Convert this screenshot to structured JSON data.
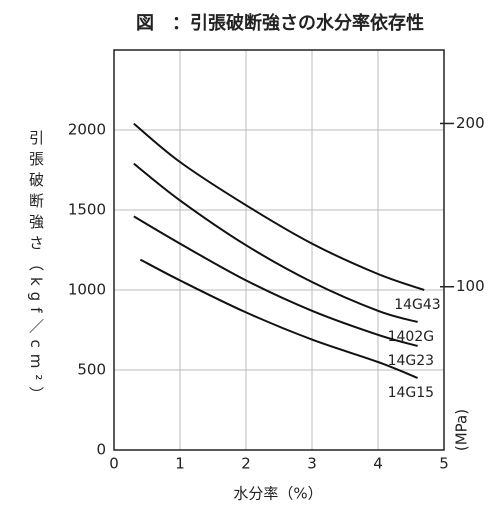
{
  "chart_data": {
    "type": "line",
    "title": "図　：引張破断強さの水分率依存性",
    "x_label": "水分率（%）",
    "y_label": "引張破断強さ（kgf／cm²）",
    "y2_label": "(MPa)",
    "xlim": [
      0,
      5
    ],
    "xticks": [
      0,
      1,
      2,
      3,
      4,
      5
    ],
    "ylim": [
      0,
      2500
    ],
    "yticks": [
      0,
      500,
      1000,
      1500,
      2000
    ],
    "y2lim": [
      0,
      245
    ],
    "y2ticks": [
      100,
      200
    ],
    "grid": true,
    "series": [
      {
        "name": "14G43",
        "color": "#111111",
        "x": [
          0.3,
          1,
          2,
          3,
          4,
          4.7
        ],
        "values": [
          2040,
          1800,
          1530,
          1290,
          1100,
          1000
        ]
      },
      {
        "name": "1402G",
        "color": "#111111",
        "x": [
          0.3,
          1,
          2,
          3,
          4,
          4.6
        ],
        "values": [
          1790,
          1560,
          1280,
          1050,
          870,
          800
        ]
      },
      {
        "name": "14G23",
        "color": "#111111",
        "x": [
          0.3,
          1,
          2,
          3,
          4,
          4.6
        ],
        "values": [
          1460,
          1290,
          1060,
          870,
          720,
          650
        ]
      },
      {
        "name": "14G15",
        "color": "#111111",
        "x": [
          0.4,
          1,
          2,
          3,
          4,
          4.6
        ],
        "values": [
          1190,
          1060,
          860,
          690,
          550,
          450
        ]
      }
    ]
  }
}
